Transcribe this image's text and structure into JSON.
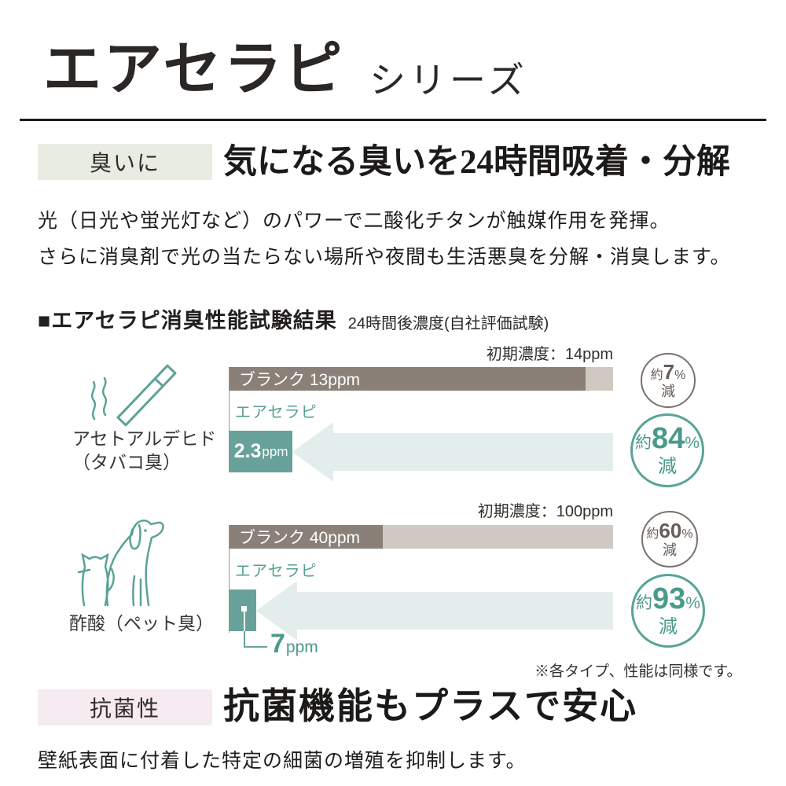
{
  "header": {
    "title": "エアセラピ",
    "series": "シリーズ"
  },
  "odor_section": {
    "badge": "臭いに",
    "heading": "気になる臭いを24時間吸着・分解",
    "body": [
      "光（日光や蛍光灯など）のパワーで二酸化チタンが触媒作用を発揮。",
      "さらに消臭剤で光の当たらない場所や夜間も生活悪臭を分解・消臭します。"
    ]
  },
  "results_section": {
    "title": "■エアセラピ消臭性能試験結果",
    "subtitle": "24時間後濃度(自社評価試験)",
    "footnote": "※各タイプ、性能は同様です。"
  },
  "chart_data": [
    {
      "type": "bar",
      "substance": "アセトアルデヒド",
      "substance_note": "（タバコ臭）",
      "icon": "cigarette-icon",
      "initial_label": "初期濃度：14ppm",
      "initial_ppm": 14,
      "unit": "ppm",
      "categories": [
        "ブランク",
        "エアセラピ"
      ],
      "values": [
        13,
        2.3
      ],
      "blank_label": "ブランク 13ppm",
      "series_label": "エアセラピ",
      "xlim": [
        0,
        14
      ],
      "reductions": [
        {
          "prefix": "約",
          "value": "7",
          "unit": "%",
          "word": "減",
          "applies_to": "ブランク"
        },
        {
          "prefix": "約",
          "value": "84",
          "unit": "%",
          "word": "減",
          "applies_to": "エアセラピ"
        }
      ]
    },
    {
      "type": "bar",
      "substance": "酢酸（ペット臭）",
      "icon": "dog-cat-icon",
      "initial_label": "初期濃度：100ppm",
      "initial_ppm": 100,
      "unit": "ppm",
      "categories": [
        "ブランク",
        "エアセラピ"
      ],
      "values": [
        40,
        7
      ],
      "blank_label": "ブランク 40ppm",
      "series_label": "エアセラピ",
      "xlim": [
        0,
        100
      ],
      "reductions": [
        {
          "prefix": "約",
          "value": "60",
          "unit": "%",
          "word": "減",
          "applies_to": "ブランク"
        },
        {
          "prefix": "約",
          "value": "93",
          "unit": "%",
          "word": "減",
          "applies_to": "エアセラピ"
        }
      ]
    }
  ],
  "antibacterial_section": {
    "badge": "抗菌性",
    "heading": "抗菌機能もプラスで安心",
    "body": "壁紙表面に付着した特定の細菌の増殖を抑制します。"
  },
  "colors": {
    "accent_teal": "#5ba396",
    "bar_teal": "#68a19a",
    "bar_blank_dark": "#8a8078",
    "bar_blank_light": "#d0c9c2",
    "arrow_fill": "#e3edec",
    "circle_gray_border": "#7b716d",
    "circle_teal_border": "#58a496",
    "badge_odor_bg": "#e9ece2",
    "badge_antibacterial_bg": "#f5ebf1"
  },
  "icons": [
    "cigarette-icon",
    "dog-cat-icon"
  ]
}
